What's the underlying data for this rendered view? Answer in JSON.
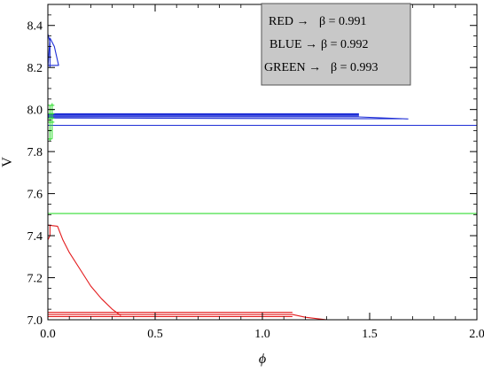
{
  "chart_data": {
    "type": "line",
    "xlabel": "ϕ",
    "ylabel": "V",
    "xlim": [
      0,
      2.0
    ],
    "ylim": [
      7.0,
      8.5
    ],
    "x_ticks": [
      {
        "value": 0.0,
        "label": "0.0"
      },
      {
        "value": 0.5,
        "label": "0.5"
      },
      {
        "value": 1.0,
        "label": "1.0"
      },
      {
        "value": 1.5,
        "label": "1.5"
      },
      {
        "value": 2.0,
        "label": "2.0"
      }
    ],
    "y_ticks": [
      {
        "value": 7.0,
        "label": "7.0"
      },
      {
        "value": 7.2,
        "label": "7.2"
      },
      {
        "value": 7.4,
        "label": "7.4"
      },
      {
        "value": 7.6,
        "label": "7.6"
      },
      {
        "value": 7.8,
        "label": "7.8"
      },
      {
        "value": 8.0,
        "label": "8.0"
      },
      {
        "value": 8.2,
        "label": "8.2"
      },
      {
        "value": 8.4,
        "label": "8.4"
      }
    ],
    "legend": {
      "placement": "top-right",
      "entries": [
        {
          "label": "RED →",
          "beta_label": "β = 0.991",
          "color": "#e31a1c"
        },
        {
          "label": "BLUE →",
          "beta_label": "β = 0.992",
          "color": "#1f2fd6"
        },
        {
          "label": "GREEN →",
          "beta_label": "β = 0.993",
          "color": "#33dd33"
        }
      ]
    },
    "series": [
      {
        "color": "#e31a1c",
        "paths": [
          [
            [
              0.0,
              7.45
            ],
            [
              0.045,
              7.445
            ],
            [
              0.07,
              7.38
            ],
            [
              0.1,
              7.32
            ],
            [
              0.15,
              7.24
            ],
            [
              0.2,
              7.16
            ],
            [
              0.25,
              7.1
            ],
            [
              0.3,
              7.05
            ],
            [
              0.34,
              7.02
            ]
          ],
          [
            [
              0.0,
              7.025
            ],
            [
              0.34,
              7.025
            ],
            [
              1.14,
              7.025
            ],
            [
              1.2,
              7.012
            ],
            [
              1.34,
              6.995
            ]
          ],
          [
            [
              0.0,
              7.015
            ],
            [
              0.34,
              7.015
            ],
            [
              1.14,
              7.015
            ]
          ],
          [
            [
              0.0,
              7.035
            ],
            [
              0.34,
              7.035
            ],
            [
              1.14,
              7.035
            ]
          ],
          [
            [
              0.0,
              7.38
            ],
            [
              0.01,
              7.4
            ],
            [
              0.01,
              7.45
            ]
          ]
        ]
      },
      {
        "color": "#1f2fd6",
        "paths": [
          [
            [
              0.0,
              7.925
            ],
            [
              2.0,
              7.925
            ]
          ],
          [
            [
              0.0,
              7.96
            ],
            [
              1.65,
              7.956
            ]
          ],
          [
            [
              0.0,
              7.965
            ],
            [
              1.45,
              7.965
            ],
            [
              1.68,
              7.955
            ]
          ],
          [
            [
              0.0,
              7.97
            ],
            [
              1.45,
              7.97
            ]
          ],
          [
            [
              0.0,
              7.975
            ],
            [
              1.45,
              7.975
            ]
          ],
          [
            [
              0.0,
              7.98
            ],
            [
              1.45,
              7.98
            ]
          ],
          [
            [
              0.0,
              8.2
            ],
            [
              0.01,
              8.34
            ],
            [
              0.03,
              8.3
            ],
            [
              0.05,
              8.21
            ],
            [
              0.0,
              8.21
            ]
          ],
          [
            [
              0.0,
              8.36
            ],
            [
              0.01,
              8.32
            ],
            [
              0.01,
              8.2
            ]
          ]
        ]
      },
      {
        "color": "#33dd33",
        "paths": [
          [
            [
              0.0,
              7.505
            ],
            [
              2.0,
              7.505
            ]
          ],
          [
            [
              0.01,
              7.85
            ],
            [
              0.01,
              8.02
            ]
          ],
          [
            [
              0.02,
              7.86
            ],
            [
              0.02,
              8.03
            ]
          ],
          [
            [
              0.0,
              8.02
            ],
            [
              0.03,
              8.02
            ]
          ],
          [
            [
              0.0,
              8.0
            ],
            [
              0.03,
              8.0
            ]
          ],
          [
            [
              0.0,
              7.98
            ],
            [
              0.03,
              7.98
            ]
          ],
          [
            [
              0.0,
              7.96
            ],
            [
              0.03,
              7.96
            ]
          ],
          [
            [
              0.0,
              7.94
            ],
            [
              0.03,
              7.94
            ]
          ],
          [
            [
              0.0,
              7.9
            ],
            [
              0.02,
              7.9
            ]
          ],
          [
            [
              0.0,
              7.86
            ],
            [
              0.02,
              7.86
            ]
          ]
        ]
      }
    ]
  }
}
